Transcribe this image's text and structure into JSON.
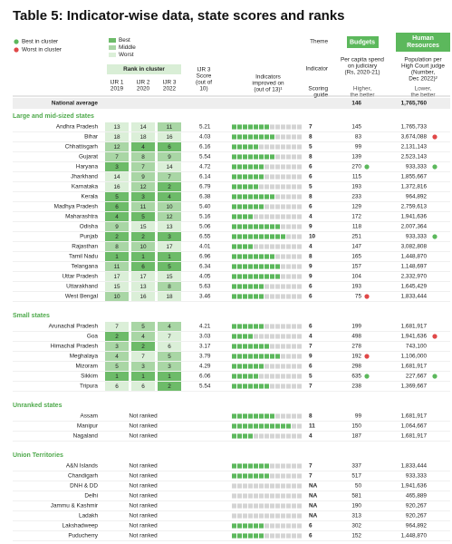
{
  "title": "Table 5: Indicator-wise data, state scores and ranks",
  "legend": {
    "best_cluster": "Best in cluster",
    "worst_cluster": "Worst in cluster",
    "shades": [
      "Best",
      "Middle",
      "Worst"
    ]
  },
  "shade_colors": {
    "b": "#6dbb69",
    "m": "#a9d6a5",
    "w": "#dbefd8"
  },
  "flag_colors": {
    "best": "#5cb85c",
    "worst": "#e04848"
  },
  "header": {
    "rank_group": "Rank in cluster",
    "ranks": [
      [
        "IJR 1",
        "2019"
      ],
      [
        "IJR 2",
        "2020"
      ],
      [
        "IJR 3",
        "2022"
      ]
    ],
    "score": [
      "IJR 3",
      "Score",
      "(out of",
      "10)"
    ],
    "indicators": [
      "Indicators",
      "improved on",
      "(out of 13)¹"
    ],
    "indicators_total": 13,
    "theme_label": "Theme",
    "indicator_label": "Indicator",
    "scoring_label": [
      "Scoring",
      "guide"
    ],
    "themes": [
      {
        "name": [
          "Budgets"
        ],
        "indicator": [
          "Per capita spend",
          "on judiciary",
          "(Rs, 2020-21)"
        ],
        "guide": [
          "Higher,",
          "the better"
        ]
      },
      {
        "name": [
          "Human",
          "Resources"
        ],
        "indicator": [
          "Population per",
          "High Court judge",
          "(Number,",
          "Dec 2022)²"
        ],
        "guide": [
          "Lower,",
          "the better"
        ]
      }
    ]
  },
  "national": {
    "label": "National average",
    "budget": "146",
    "population": "1,765,760"
  },
  "sections": [
    {
      "title": "Large and mid-sized states",
      "rows": [
        {
          "name": "Andhra Pradesh",
          "ranks": [
            "13",
            "14",
            "11"
          ],
          "shades": "wwm",
          "score": "5.21",
          "improved": 7,
          "budget": "145",
          "population": "1,765,733"
        },
        {
          "name": "Bihar",
          "ranks": [
            "18",
            "18",
            "16"
          ],
          "shades": "www",
          "score": "4.03",
          "improved": 8,
          "budget": "83",
          "population": "3,674,088",
          "flags": {
            "population": "worst"
          }
        },
        {
          "name": "Chhattisgarh",
          "ranks": [
            "12",
            "4",
            "6"
          ],
          "shades": "mbb",
          "score": "6.16",
          "improved": 5,
          "budget": "99",
          "population": "2,131,143"
        },
        {
          "name": "Gujarat",
          "ranks": [
            "7",
            "8",
            "9"
          ],
          "shades": "mmm",
          "score": "5.54",
          "improved": 8,
          "budget": "139",
          "population": "2,523,143"
        },
        {
          "name": "Haryana",
          "ranks": [
            "3",
            "7",
            "14"
          ],
          "shades": "bmw",
          "score": "4.72",
          "improved": 6,
          "budget": "270",
          "population": "933,333",
          "flags": {
            "budget": "best",
            "population": "best"
          }
        },
        {
          "name": "Jharkhand",
          "ranks": [
            "14",
            "9",
            "7"
          ],
          "shades": "wmm",
          "score": "6.14",
          "improved": 6,
          "budget": "115",
          "population": "1,855,667"
        },
        {
          "name": "Karnataka",
          "ranks": [
            "16",
            "12",
            "2"
          ],
          "shades": "wmb",
          "score": "6.79",
          "improved": 5,
          "budget": "193",
          "population": "1,372,816"
        },
        {
          "name": "Kerala",
          "ranks": [
            "5",
            "3",
            "4"
          ],
          "shades": "bbb",
          "score": "6.38",
          "improved": 8,
          "budget": "233",
          "population": "964,892"
        },
        {
          "name": "Madhya Pradesh",
          "ranks": [
            "6",
            "11",
            "10"
          ],
          "shades": "bmm",
          "score": "5.40",
          "improved": 6,
          "budget": "129",
          "population": "2,759,613"
        },
        {
          "name": "Maharashtra",
          "ranks": [
            "4",
            "5",
            "12"
          ],
          "shades": "bbm",
          "score": "5.16",
          "improved": 4,
          "budget": "172",
          "population": "1,941,636"
        },
        {
          "name": "Odisha",
          "ranks": [
            "9",
            "15",
            "13"
          ],
          "shades": "mww",
          "score": "5.06",
          "improved": 9,
          "budget": "118",
          "population": "2,007,364"
        },
        {
          "name": "Punjab",
          "ranks": [
            "2",
            "2",
            "3"
          ],
          "shades": "bbb",
          "score": "6.55",
          "improved": 10,
          "budget": "251",
          "population": "933,333",
          "flags": {
            "population": "best"
          }
        },
        {
          "name": "Rajasthan",
          "ranks": [
            "8",
            "10",
            "17"
          ],
          "shades": "mmw",
          "score": "4.01",
          "improved": 4,
          "budget": "147",
          "population": "3,082,808"
        },
        {
          "name": "Tamil Nadu",
          "ranks": [
            "1",
            "1",
            "1"
          ],
          "shades": "bbb",
          "score": "6.96",
          "improved": 8,
          "budget": "165",
          "population": "1,448,870"
        },
        {
          "name": "Telangana",
          "ranks": [
            "11",
            "6",
            "5"
          ],
          "shades": "mbb",
          "score": "6.34",
          "improved": 9,
          "budget": "157",
          "population": "1,148,697"
        },
        {
          "name": "Uttar Pradesh",
          "ranks": [
            "17",
            "17",
            "15"
          ],
          "shades": "www",
          "score": "4.05",
          "improved": 9,
          "budget": "104",
          "population": "2,332,970"
        },
        {
          "name": "Uttarakhand",
          "ranks": [
            "15",
            "13",
            "8"
          ],
          "shades": "wwm",
          "score": "5.63",
          "improved": 6,
          "budget": "193",
          "population": "1,645,429"
        },
        {
          "name": "West Bengal",
          "ranks": [
            "10",
            "16",
            "18"
          ],
          "shades": "mww",
          "score": "3.46",
          "improved": 6,
          "budget": "75",
          "population": "1,833,444",
          "flags": {
            "budget": "worst"
          }
        }
      ]
    },
    {
      "title": "Small states",
      "rows": [
        {
          "name": "Arunachal Pradesh",
          "ranks": [
            "7",
            "5",
            "4"
          ],
          "shades": "wmm",
          "score": "4.21",
          "improved": 6,
          "budget": "199",
          "population": "1,681,917"
        },
        {
          "name": "Goa",
          "ranks": [
            "2",
            "4",
            "7"
          ],
          "shades": "bmw",
          "score": "3.03",
          "improved": 4,
          "budget": "498",
          "population": "1,941,636",
          "flags": {
            "population": "worst"
          }
        },
        {
          "name": "Himachal Pradesh",
          "ranks": [
            "3",
            "2",
            "6"
          ],
          "shades": "mbw",
          "score": "3.17",
          "improved": 7,
          "budget": "278",
          "population": "743,100"
        },
        {
          "name": "Meghalaya",
          "ranks": [
            "4",
            "7",
            "5"
          ],
          "shades": "mwm",
          "score": "3.79",
          "improved": 9,
          "budget": "192",
          "population": "1,106,000",
          "flags": {
            "budget": "worst"
          }
        },
        {
          "name": "Mizoram",
          "ranks": [
            "5",
            "3",
            "3"
          ],
          "shades": "mmm",
          "score": "4.29",
          "improved": 6,
          "budget": "298",
          "population": "1,681,917"
        },
        {
          "name": "Sikkim",
          "ranks": [
            "1",
            "1",
            "1"
          ],
          "shades": "bbb",
          "score": "6.06",
          "improved": 5,
          "budget": "635",
          "population": "227,667",
          "flags": {
            "budget": "best",
            "population": "best"
          }
        },
        {
          "name": "Tripura",
          "ranks": [
            "6",
            "6",
            "2"
          ],
          "shades": "wwb",
          "score": "5.54",
          "improved": 7,
          "budget": "238",
          "population": "1,369,667"
        }
      ]
    },
    {
      "title": "Unranked states",
      "rows": [
        {
          "name": "Assam",
          "ranks_note": "Not ranked",
          "improved": 8,
          "budget": "99",
          "population": "1,681,917"
        },
        {
          "name": "Manipur",
          "ranks_note": "Not ranked",
          "improved": 11,
          "budget": "150",
          "population": "1,064,667"
        },
        {
          "name": "Nagaland",
          "ranks_note": "Not ranked",
          "improved": 4,
          "budget": "187",
          "population": "1,681,917"
        }
      ]
    },
    {
      "title": "Union Territories",
      "rows": [
        {
          "name": "A&N Islands",
          "ranks_note": "Not ranked",
          "improved": 7,
          "budget": "337",
          "population": "1,833,444"
        },
        {
          "name": "Chandigarh",
          "ranks_note": "Not ranked",
          "improved": 7,
          "budget": "517",
          "population": "933,333"
        },
        {
          "name": "DNH & DD",
          "ranks_note": "Not ranked",
          "improved": "NA",
          "budget": "50",
          "population": "1,941,636"
        },
        {
          "name": "Delhi",
          "ranks_note": "Not ranked",
          "improved": "NA",
          "budget": "581",
          "population": "465,889"
        },
        {
          "name": "Jammu & Kashmir",
          "ranks_note": "Not ranked",
          "improved": "NA",
          "budget": "190",
          "population": "920,267"
        },
        {
          "name": "Ladakh",
          "ranks_note": "Not ranked",
          "improved": "NA",
          "budget": "313",
          "population": "920,267"
        },
        {
          "name": "Lakshadweep",
          "ranks_note": "Not ranked",
          "improved": 6,
          "budget": "302",
          "population": "964,892"
        },
        {
          "name": "Puducherry",
          "ranks_note": "Not ranked",
          "improved": 6,
          "budget": "152",
          "population": "1,448,870"
        }
      ]
    }
  ]
}
